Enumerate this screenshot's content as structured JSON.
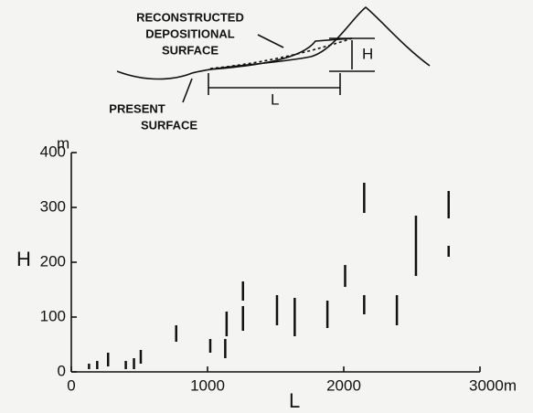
{
  "diagram": {
    "reconstructed_label": [
      "RECONSTRUCTED",
      "DEPOSITIONAL",
      "SURFACE"
    ],
    "present_label": [
      "PRESENT",
      "SURFACE"
    ],
    "h_label": "H",
    "l_label": "L"
  },
  "chart_data": {
    "type": "range",
    "x": [
      130,
      190,
      270,
      400,
      460,
      510,
      770,
      1020,
      1130,
      1140,
      1260,
      1260,
      1510,
      1640,
      1880,
      2010,
      2150,
      2150,
      2390,
      2530,
      2770,
      2770
    ],
    "low": [
      5,
      5,
      10,
      5,
      5,
      15,
      55,
      35,
      25,
      65,
      75,
      130,
      85,
      65,
      80,
      155,
      105,
      290,
      85,
      175,
      210,
      280
    ],
    "high": [
      15,
      20,
      35,
      20,
      25,
      40,
      85,
      60,
      60,
      110,
      120,
      165,
      140,
      135,
      130,
      195,
      140,
      345,
      140,
      285,
      230,
      330
    ],
    "color": "#111111",
    "xlim": [
      0,
      3000
    ],
    "xticks": [
      0,
      1000,
      2000,
      {
        "value": 3000,
        "label": "3000m"
      }
    ],
    "ylim": [
      0,
      400
    ],
    "yticks": [
      0,
      100,
      200,
      300,
      400
    ],
    "x_label": "L",
    "y_label": "H",
    "y_unit": "m"
  }
}
